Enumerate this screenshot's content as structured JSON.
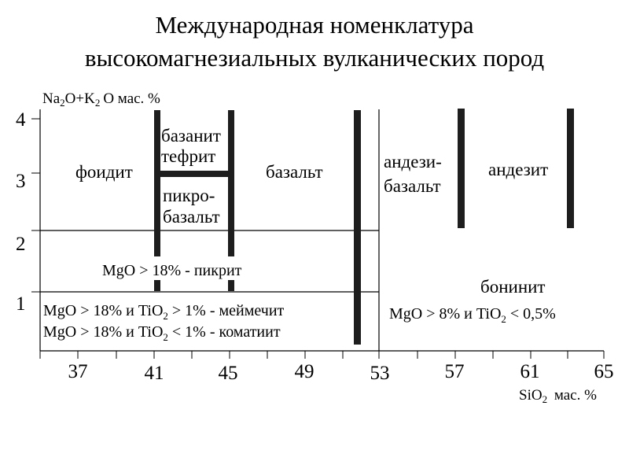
{
  "title": {
    "line1": "Международная номенклатура",
    "line2": "высокомагнезиальных вулканических пород"
  },
  "chart_data": {
    "type": "diagram",
    "ylabel": {
      "main": "Na",
      "sub1": "2",
      "mid": "O+K",
      "sub2": "2",
      "tail": "O мас. %"
    },
    "xlabel": {
      "main": "SiO",
      "sub": "2",
      "tail": " мас. %"
    },
    "x_ticks": [
      "37",
      "41",
      "45",
      "49",
      "53",
      "57",
      "61",
      "65"
    ],
    "y_ticks": [
      "1",
      "2",
      "3",
      "4"
    ],
    "fields": [
      {
        "name": "foidite",
        "lines": [
          "фоидит"
        ]
      },
      {
        "name": "basanite-tephrite",
        "lines": [
          "базанит",
          "тефрит"
        ]
      },
      {
        "name": "picrobasalt",
        "lines": [
          "пикро-",
          "базальт"
        ]
      },
      {
        "name": "basalt",
        "lines": [
          "базальт"
        ]
      },
      {
        "name": "basaltic-andesite",
        "lines": [
          "андези-",
          "базальт"
        ]
      },
      {
        "name": "andesite",
        "lines": [
          "андезит"
        ]
      },
      {
        "name": "boninite",
        "lines": [
          "бонинит"
        ]
      }
    ],
    "criteria": {
      "picrite": "MgO > 18% - пикрит",
      "meimechite": {
        "a": "MgO > 18% и TiO",
        "sub": "2",
        "b": " > 1%  - меймечит"
      },
      "komatiite": {
        "a": "MgO > 18% и TiO",
        "sub": "2",
        "b": " < 1% - коматиит"
      },
      "boninite": {
        "a": "MgO > 8% и TiO",
        "sub": "2",
        "b": " < 0,5%"
      }
    }
  }
}
